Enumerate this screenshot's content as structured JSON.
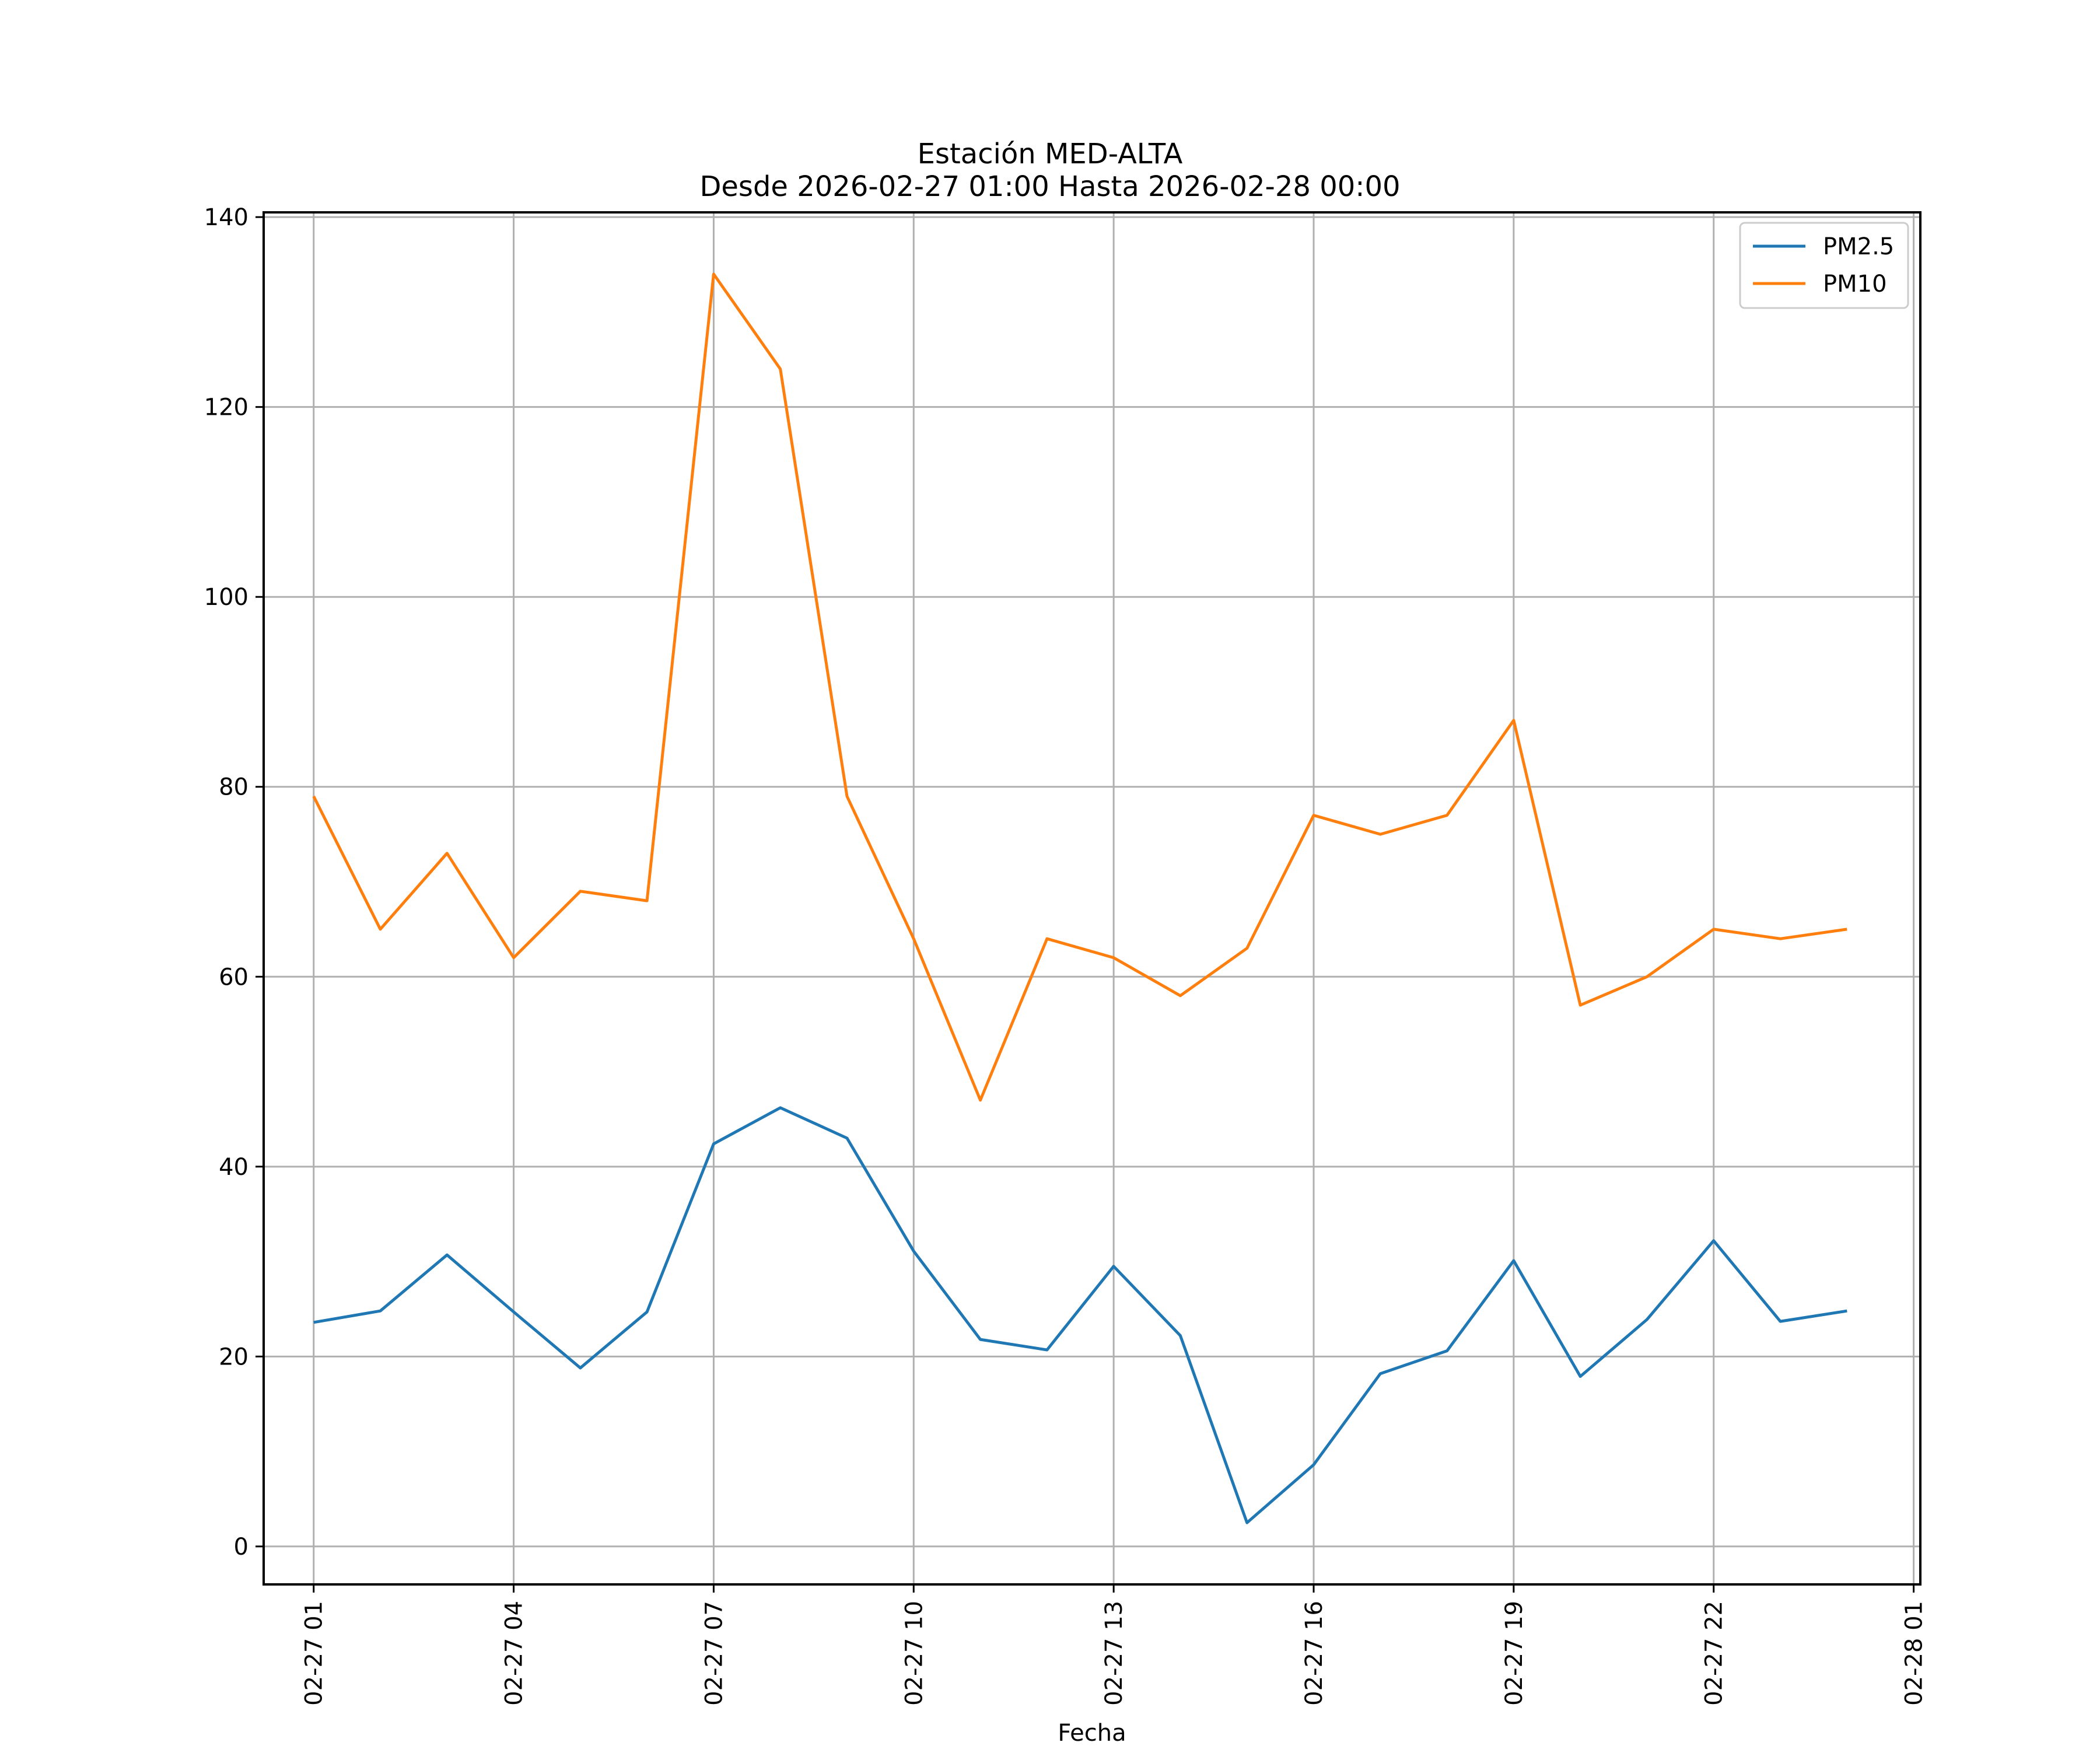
{
  "chart_data": {
    "type": "line",
    "title_line1": "Estación MED-ALTA",
    "title_line2": "Desde 2026-02-27 01:00 Hasta 2026-02-28 00:00",
    "xlabel": "Fecha",
    "ylabel": "",
    "x": [
      "02-27 01",
      "02-27 02",
      "02-27 03",
      "02-27 04",
      "02-27 05",
      "02-27 06",
      "02-27 07",
      "02-27 08",
      "02-27 09",
      "02-27 10",
      "02-27 11",
      "02-27 12",
      "02-27 13",
      "02-27 14",
      "02-27 15",
      "02-27 16",
      "02-27 17",
      "02-27 18",
      "02-27 19",
      "02-27 20",
      "02-27 21",
      "02-27 22",
      "02-27 23",
      "02-28 00"
    ],
    "xlim_hours": [
      -0.75,
      24.1
    ],
    "ylim": [
      -4,
      140.5
    ],
    "grid": true,
    "legend_position": "top-right",
    "x_ticks": [
      {
        "hour": 0,
        "label": "02-27 01"
      },
      {
        "hour": 3,
        "label": "02-27 04"
      },
      {
        "hour": 6,
        "label": "02-27 07"
      },
      {
        "hour": 9,
        "label": "02-27 10"
      },
      {
        "hour": 12,
        "label": "02-27 13"
      },
      {
        "hour": 15,
        "label": "02-27 16"
      },
      {
        "hour": 18,
        "label": "02-27 19"
      },
      {
        "hour": 21,
        "label": "02-27 22"
      },
      {
        "hour": 24,
        "label": "02-28 01"
      }
    ],
    "y_ticks": [
      {
        "value": 0,
        "label": "0"
      },
      {
        "value": 20,
        "label": "20"
      },
      {
        "value": 40,
        "label": "40"
      },
      {
        "value": 60,
        "label": "60"
      },
      {
        "value": 80,
        "label": "80"
      },
      {
        "value": 100,
        "label": "100"
      },
      {
        "value": 120,
        "label": "120"
      },
      {
        "value": 140,
        "label": "140"
      }
    ],
    "series": [
      {
        "name": "PM2.5",
        "color": "#1f77b4",
        "values": [
          23.6,
          24.8,
          30.7,
          24.7,
          18.8,
          24.7,
          42.4,
          46.2,
          43.0,
          31.1,
          21.8,
          20.7,
          29.5,
          22.2,
          2.5,
          8.6,
          18.2,
          20.6,
          30.1,
          17.9,
          23.9,
          32.2,
          23.7,
          24.8
        ]
      },
      {
        "name": "PM10",
        "color": "#ff7f0e",
        "values": [
          79,
          65,
          73,
          62,
          69,
          68,
          134,
          124,
          79,
          64,
          47,
          64,
          62,
          58,
          63,
          77,
          75,
          77,
          87,
          57,
          60,
          65,
          64,
          65
        ]
      }
    ]
  }
}
